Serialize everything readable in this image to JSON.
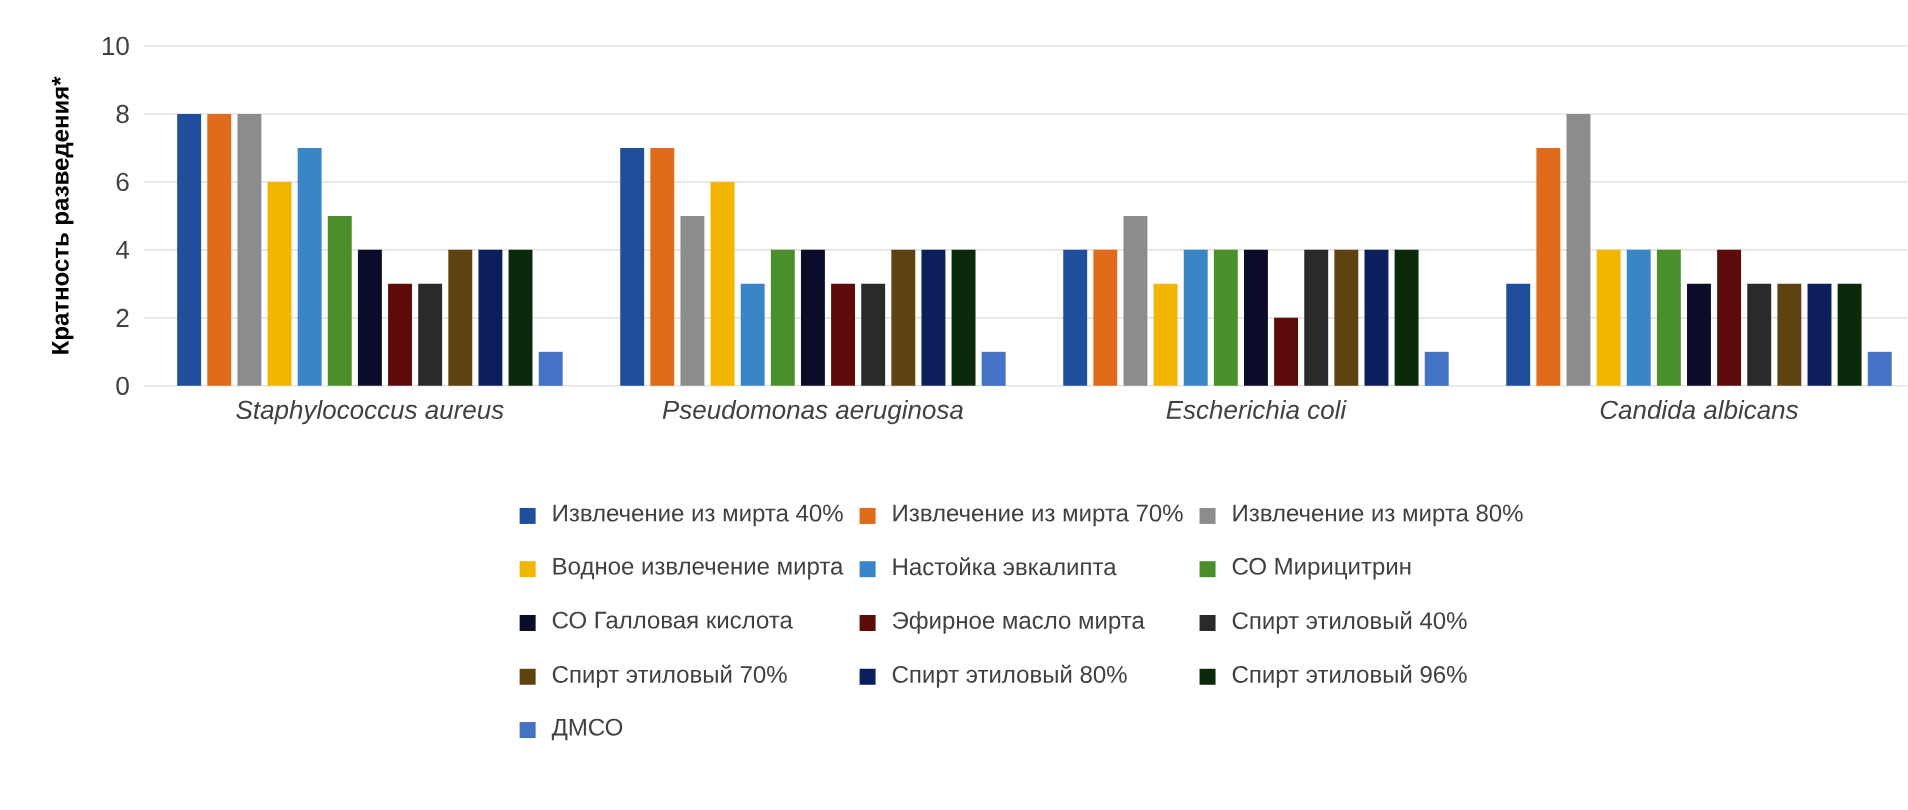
{
  "chart_data": {
    "type": "bar",
    "ylabel": "Кратность разведения*",
    "categories": [
      "Staphylococcus aureus",
      "Pseudomonas aeruginosa",
      "Escherichia coli",
      "Candida albicans"
    ],
    "ylim": [
      0,
      10
    ],
    "yticks": [
      0,
      2,
      4,
      6,
      8,
      10
    ],
    "grid": "y",
    "legend": "bottom",
    "series": [
      {
        "name": "Извлечение из мирта 40%",
        "color": "#1f4e9c",
        "values": [
          8,
          7,
          4,
          3
        ]
      },
      {
        "name": "Извлечение из мирта 70%",
        "color": "#e06c1b",
        "values": [
          8,
          7,
          4,
          7
        ]
      },
      {
        "name": "Извлечение из мирта 80%",
        "color": "#8c8c8c",
        "values": [
          8,
          5,
          5,
          8
        ]
      },
      {
        "name": "Водное извлечение мирта",
        "color": "#f2b500",
        "values": [
          6,
          6,
          3,
          4
        ]
      },
      {
        "name": "Настойка эвкалипта",
        "color": "#3a85c8",
        "values": [
          7,
          3,
          4,
          4
        ]
      },
      {
        "name": "СО Мирицитрин",
        "color": "#4b8f2a",
        "values": [
          5,
          4,
          4,
          4
        ]
      },
      {
        "name": "СО Галловая кислота",
        "color": "#0b0b2a",
        "values": [
          4,
          4,
          4,
          3
        ]
      },
      {
        "name": "Эфирное масло мирта",
        "color": "#5c0a0a",
        "values": [
          3,
          3,
          2,
          4
        ]
      },
      {
        "name": "Спирт этиловый 40%",
        "color": "#2a2a2a",
        "values": [
          3,
          3,
          4,
          3
        ]
      },
      {
        "name": "Спирт этиловый 70%",
        "color": "#5e4210",
        "values": [
          4,
          4,
          4,
          3
        ]
      },
      {
        "name": "Спирт этиловый 80%",
        "color": "#0c1f5c",
        "values": [
          4,
          4,
          4,
          3
        ]
      },
      {
        "name": "Спирт этиловый 96%",
        "color": "#0b2a0b",
        "values": [
          4,
          4,
          4,
          3
        ]
      },
      {
        "name": "ДМСО",
        "color": "#4472c4",
        "values": [
          1,
          1,
          1,
          1
        ]
      }
    ]
  }
}
